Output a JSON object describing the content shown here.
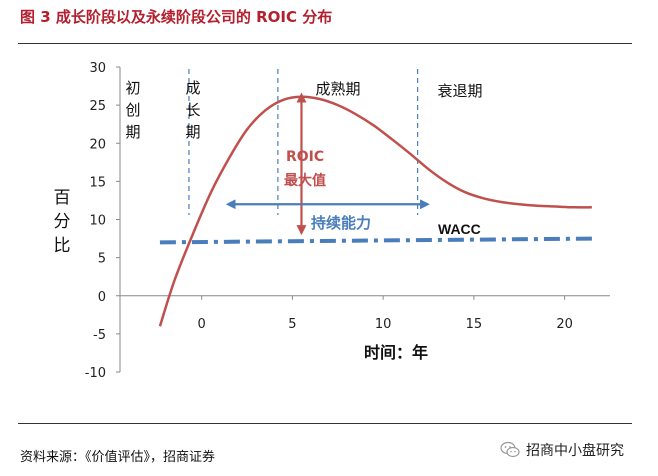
{
  "title": "图 3  成长阶段以及永续阶段公司的 ROIC 分布",
  "source": "资料来源：《价值评估》，招商证券",
  "brand": "招商中小盘研究",
  "chart_data": {
    "type": "line",
    "title": "图 3  成长阶段以及永续阶段公司的 ROIC 分布",
    "xlabel": "时间：年",
    "ylabel": "百分比",
    "xlim": [
      -4.5,
      22.5
    ],
    "ylim": [
      -10,
      30
    ],
    "x_ticks": [
      0,
      5,
      10,
      15,
      20
    ],
    "y_ticks": [
      -10,
      -5,
      0,
      5,
      10,
      15,
      20,
      25,
      30
    ],
    "x_tick_labels": [
      "0",
      "5",
      "10",
      "15",
      "20"
    ],
    "y_tick_labels": [
      "-10",
      "-5",
      "0",
      "5",
      "10",
      "15",
      "20",
      "25",
      "30"
    ],
    "grid": false,
    "series": [
      {
        "name": "ROIC",
        "color": "#c0504d",
        "x": [
          -2.3,
          -1.5,
          -0.5,
          0.5,
          1.5,
          2.5,
          3.5,
          4.5,
          5.5,
          6.5,
          7.5,
          8.5,
          9.5,
          10.5,
          11.5,
          12.5,
          13.5,
          14.5,
          15.5,
          16.5,
          17.5,
          18.5,
          19.5,
          20.5,
          21.5
        ],
        "y": [
          -4.0,
          2.0,
          8.0,
          13.5,
          18.0,
          21.8,
          24.3,
          25.7,
          26.1,
          25.8,
          25.0,
          23.8,
          22.3,
          20.5,
          18.6,
          16.6,
          14.9,
          13.6,
          12.8,
          12.3,
          12.0,
          11.8,
          11.7,
          11.6,
          11.6
        ]
      },
      {
        "name": "WACC",
        "color": "#4a7ebb",
        "style": "dash-dot",
        "x": [
          -2.3,
          21.8
        ],
        "y": [
          7.0,
          7.5
        ]
      }
    ],
    "phase_dividers_x": [
      -0.7,
      4.2,
      11.9
    ],
    "phases": [
      "初创期",
      "成长期",
      "成熟期",
      "衰退期"
    ],
    "annotations": {
      "roic_max": {
        "label_line1": "ROIC",
        "label_line2": "最大值",
        "x": 5.5,
        "y_from": 26.0,
        "y_to": 8.6
      },
      "sustainability": {
        "label": "持续能力",
        "x_from": 1.6,
        "x_to": 12.3,
        "y": 12.0
      },
      "wacc": {
        "label": "WACC"
      }
    }
  }
}
